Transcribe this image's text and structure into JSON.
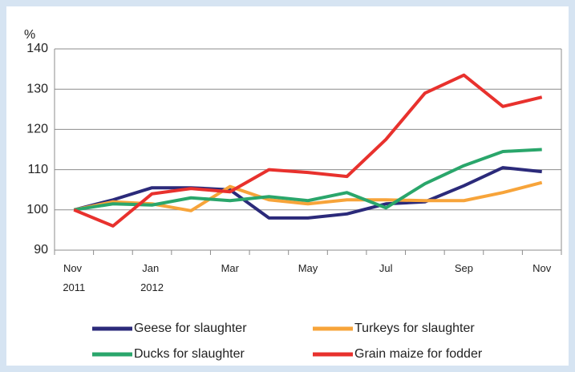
{
  "chart_data": {
    "type": "line",
    "y_label": "%",
    "categories": [
      "Nov 2011",
      null,
      "Jan 2012",
      null,
      "Mar",
      null,
      "May",
      null,
      "Jul",
      null,
      "Sep",
      null,
      "Nov"
    ],
    "series": [
      {
        "name": "Geese for slaughter",
        "color": "#2b2a7a",
        "values": [
          100,
          102.5,
          105.5,
          105.5,
          105,
          98,
          98,
          99,
          101.5,
          102,
          106,
          110.5,
          109.5
        ]
      },
      {
        "name": "Turkeys for slaughter",
        "color": "#f7a43a",
        "values": [
          100,
          102,
          101.5,
          99.8,
          105.8,
          102.5,
          101.5,
          102.5,
          102.5,
          102.3,
          102.3,
          104.3,
          106.8
        ]
      },
      {
        "name": "Ducks for slaughter",
        "color": "#2aa66b",
        "values": [
          100,
          101.5,
          101.2,
          103,
          102.3,
          103.3,
          102.3,
          104.3,
          100.5,
          106.5,
          111,
          114.5,
          115
        ]
      },
      {
        "name": "Grain maize for fodder",
        "color": "#e8312d",
        "values": [
          100,
          96,
          104,
          105.3,
          104.5,
          110,
          109.3,
          108.3,
          117.5,
          129,
          133.5,
          125.7,
          128
        ]
      }
    ],
    "ylim": [
      90,
      140
    ],
    "yticks": [
      90,
      100,
      110,
      120,
      130,
      140
    ],
    "grid": true,
    "legend": "bottom"
  }
}
